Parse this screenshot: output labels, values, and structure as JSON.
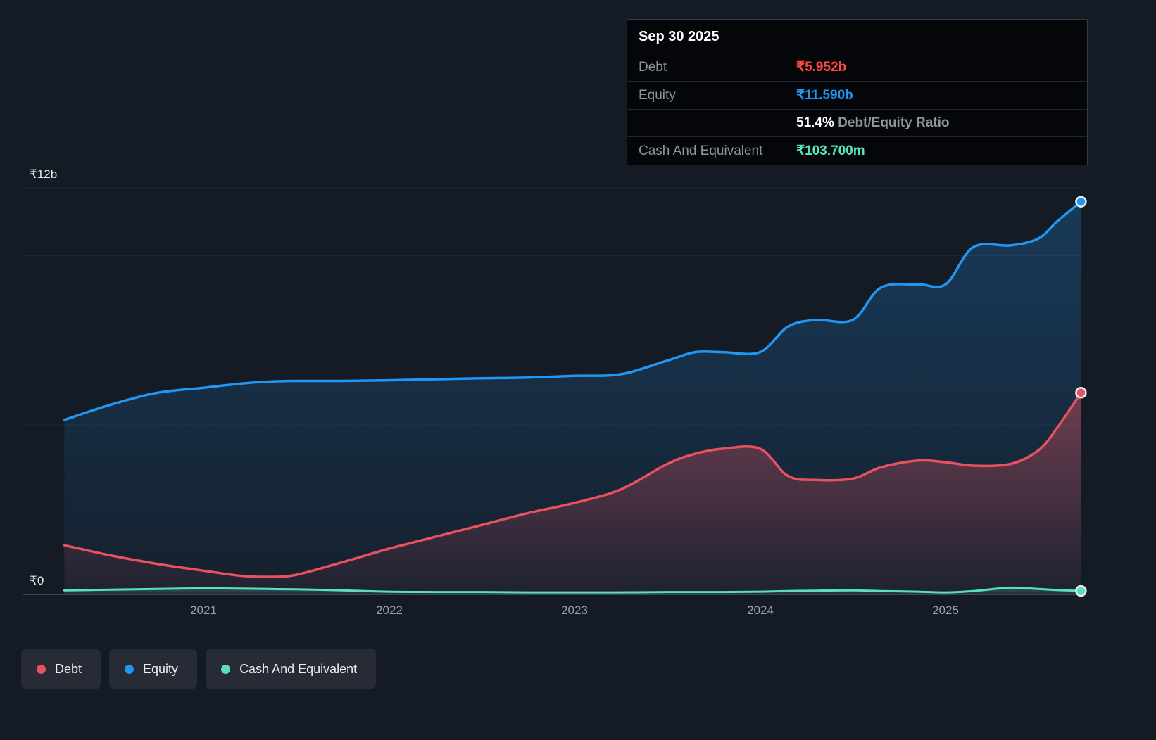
{
  "tooltip": {
    "date": "Sep 30 2025",
    "debt": {
      "label": "Debt",
      "value": "₹5.952b",
      "color": "#fb4a44"
    },
    "equity": {
      "label": "Equity",
      "value": "₹11.590b",
      "color": "#2196f3"
    },
    "ratio": {
      "value": "51.4%",
      "label": "Debt/Equity Ratio"
    },
    "cash": {
      "label": "Cash And Equivalent",
      "value": "₹103.700m",
      "color": "#55e3c0"
    }
  },
  "legend": {
    "items": [
      {
        "label": "Debt",
        "color": "#e8515f"
      },
      {
        "label": "Equity",
        "color": "#2196f3"
      },
      {
        "label": "Cash And Equivalent",
        "color": "#58e0bd"
      }
    ]
  },
  "chart_data": {
    "type": "area",
    "x": [
      2020.25,
      2020.5,
      2020.75,
      2021.0,
      2021.2,
      2021.35,
      2021.5,
      2021.75,
      2022.0,
      2022.25,
      2022.5,
      2022.75,
      2023.0,
      2023.25,
      2023.5,
      2023.65,
      2023.8,
      2024.0,
      2024.15,
      2024.3,
      2024.5,
      2024.65,
      2024.85,
      2025.0,
      2025.15,
      2025.35,
      2025.5,
      2025.6,
      2025.73
    ],
    "series": [
      {
        "name": "Equity",
        "color": "#2196f3",
        "values": [
          5.15,
          5.6,
          5.95,
          6.1,
          6.22,
          6.28,
          6.3,
          6.3,
          6.32,
          6.35,
          6.38,
          6.4,
          6.45,
          6.5,
          6.9,
          7.15,
          7.15,
          7.15,
          7.9,
          8.1,
          8.1,
          9.05,
          9.15,
          9.15,
          10.25,
          10.3,
          10.5,
          11.0,
          11.59
        ]
      },
      {
        "name": "Debt",
        "color": "#e8515f",
        "values": [
          1.45,
          1.15,
          0.9,
          0.7,
          0.55,
          0.52,
          0.58,
          0.95,
          1.35,
          1.7,
          2.05,
          2.4,
          2.7,
          3.1,
          3.85,
          4.15,
          4.3,
          4.3,
          3.5,
          3.38,
          3.42,
          3.75,
          3.95,
          3.9,
          3.8,
          3.85,
          4.25,
          4.9,
          5.952
        ]
      },
      {
        "name": "Cash And Equivalent",
        "color": "#58e0bd",
        "values": [
          0.12,
          0.14,
          0.16,
          0.18,
          0.17,
          0.16,
          0.15,
          0.12,
          0.08,
          0.07,
          0.07,
          0.06,
          0.06,
          0.06,
          0.07,
          0.07,
          0.07,
          0.08,
          0.1,
          0.11,
          0.12,
          0.1,
          0.08,
          0.06,
          0.1,
          0.2,
          0.16,
          0.13,
          0.1037
        ]
      }
    ],
    "x_ticks": [
      2021,
      2022,
      2023,
      2024,
      2025
    ],
    "x_tick_labels": [
      "2021",
      "2022",
      "2023",
      "2024",
      "2025"
    ],
    "y_axis_labels": [
      {
        "value": 12,
        "label": "₹12b"
      },
      {
        "value": 0,
        "label": "₹0"
      }
    ],
    "gridline_values": [
      12,
      10,
      5
    ],
    "ylim": [
      0,
      12
    ],
    "unit": "₹ billions",
    "legend_position": "bottom-left",
    "grid": true
  }
}
